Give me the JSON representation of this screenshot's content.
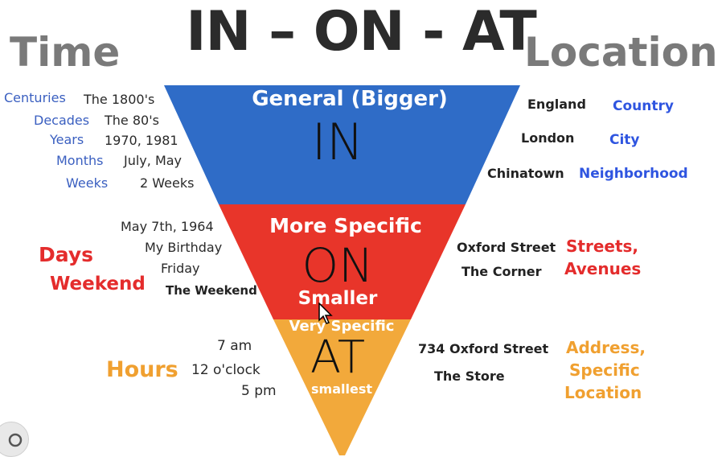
{
  "header": {
    "main_title": "IN – ON - AT",
    "left_title": "Time",
    "right_title": "Location"
  },
  "colors": {
    "in_band": "#2f6cc7",
    "on_band": "#e8352a",
    "at_band": "#f2a93b"
  },
  "triangle": {
    "in": {
      "caption": "General (Bigger)",
      "word": "IN"
    },
    "on": {
      "caption": "More Specific",
      "word": "ON",
      "sub": "Smaller"
    },
    "at": {
      "caption": "Very Specific",
      "word": "AT",
      "sub": "smallest"
    }
  },
  "time": {
    "in_rows": [
      {
        "label": "Centuries",
        "example": "The 1800's"
      },
      {
        "label": "Decades",
        "example": "The 80's"
      },
      {
        "label": "Years",
        "example": "1970, 1981"
      },
      {
        "label": "Months",
        "example": "July, May"
      },
      {
        "label": "Weeks",
        "example": "2 Weeks"
      }
    ],
    "on_examples": [
      "May 7th, 1964",
      "My Birthday",
      "Friday",
      "The Weekend"
    ],
    "on_labels": [
      "Days",
      "Weekend"
    ],
    "at_examples": [
      "7 am",
      "12 o'clock",
      "5 pm"
    ],
    "at_label": "Hours"
  },
  "location": {
    "in_rows": [
      {
        "example": "England",
        "label": "Country"
      },
      {
        "example": "London",
        "label": "City"
      },
      {
        "example": "Chinatown",
        "label": "Neighborhood"
      }
    ],
    "on_examples": [
      "Oxford Street",
      "The Corner"
    ],
    "on_labels": [
      "Streets,",
      "Avenues"
    ],
    "at_examples": [
      "734 Oxford Street",
      "The Store"
    ],
    "at_labels": [
      "Address,",
      "Specific",
      "Location"
    ]
  },
  "icons": {
    "cursor": "mouse-pointer-icon",
    "corner": "image-search-icon"
  }
}
